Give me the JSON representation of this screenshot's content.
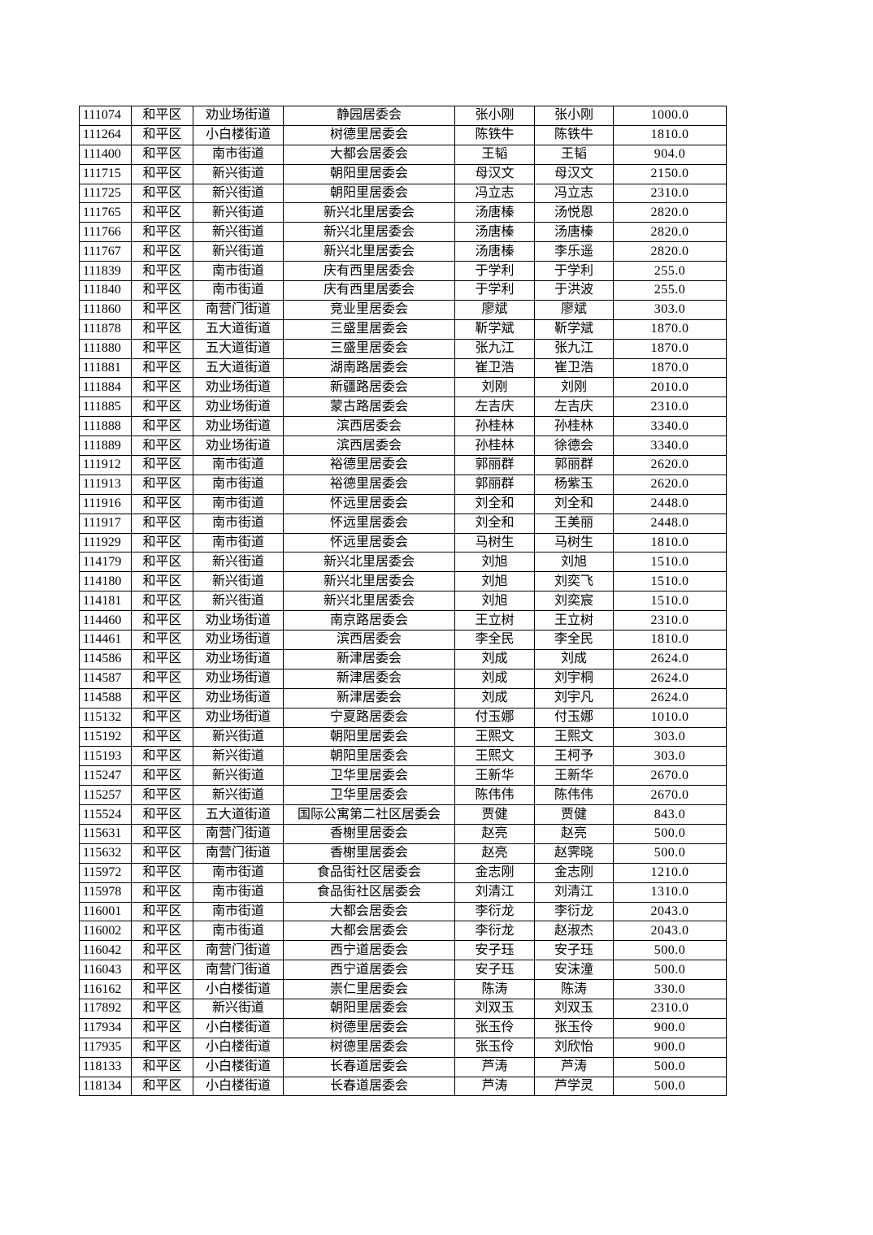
{
  "rows": [
    [
      "111074",
      "和平区",
      "劝业场街道",
      "静园居委会",
      "张小刚",
      "张小刚",
      "1000.0"
    ],
    [
      "111264",
      "和平区",
      "小白楼街道",
      "树德里居委会",
      "陈铁牛",
      "陈铁牛",
      "1810.0"
    ],
    [
      "111400",
      "和平区",
      "南市街道",
      "大都会居委会",
      "王韬",
      "王韬",
      "904.0"
    ],
    [
      "111715",
      "和平区",
      "新兴街道",
      "朝阳里居委会",
      "母汉文",
      "母汉文",
      "2150.0"
    ],
    [
      "111725",
      "和平区",
      "新兴街道",
      "朝阳里居委会",
      "冯立志",
      "冯立志",
      "2310.0"
    ],
    [
      "111765",
      "和平区",
      "新兴街道",
      "新兴北里居委会",
      "汤唐榛",
      "汤悦恩",
      "2820.0"
    ],
    [
      "111766",
      "和平区",
      "新兴街道",
      "新兴北里居委会",
      "汤唐榛",
      "汤唐榛",
      "2820.0"
    ],
    [
      "111767",
      "和平区",
      "新兴街道",
      "新兴北里居委会",
      "汤唐榛",
      "李乐遥",
      "2820.0"
    ],
    [
      "111839",
      "和平区",
      "南市街道",
      "庆有西里居委会",
      "于学利",
      "于学利",
      "255.0"
    ],
    [
      "111840",
      "和平区",
      "南市街道",
      "庆有西里居委会",
      "于学利",
      "于洪波",
      "255.0"
    ],
    [
      "111860",
      "和平区",
      "南营门街道",
      "竞业里居委会",
      "廖斌",
      "廖斌",
      "303.0"
    ],
    [
      "111878",
      "和平区",
      "五大道街道",
      "三盛里居委会",
      "靳学斌",
      "靳学斌",
      "1870.0"
    ],
    [
      "111880",
      "和平区",
      "五大道街道",
      "三盛里居委会",
      "张九江",
      "张九江",
      "1870.0"
    ],
    [
      "111881",
      "和平区",
      "五大道街道",
      "湖南路居委会",
      "崔卫浩",
      "崔卫浩",
      "1870.0"
    ],
    [
      "111884",
      "和平区",
      "劝业场街道",
      "新疆路居委会",
      "刘刚",
      "刘刚",
      "2010.0"
    ],
    [
      "111885",
      "和平区",
      "劝业场街道",
      "蒙古路居委会",
      "左吉庆",
      "左吉庆",
      "2310.0"
    ],
    [
      "111888",
      "和平区",
      "劝业场街道",
      "滨西居委会",
      "孙桂林",
      "孙桂林",
      "3340.0"
    ],
    [
      "111889",
      "和平区",
      "劝业场街道",
      "滨西居委会",
      "孙桂林",
      "徐德会",
      "3340.0"
    ],
    [
      "111912",
      "和平区",
      "南市街道",
      "裕德里居委会",
      "郭丽群",
      "郭丽群",
      "2620.0"
    ],
    [
      "111913",
      "和平区",
      "南市街道",
      "裕德里居委会",
      "郭丽群",
      "杨紫玉",
      "2620.0"
    ],
    [
      "111916",
      "和平区",
      "南市街道",
      "怀远里居委会",
      "刘全和",
      "刘全和",
      "2448.0"
    ],
    [
      "111917",
      "和平区",
      "南市街道",
      "怀远里居委会",
      "刘全和",
      "王美丽",
      "2448.0"
    ],
    [
      "111929",
      "和平区",
      "南市街道",
      "怀远里居委会",
      "马树生",
      "马树生",
      "1810.0"
    ],
    [
      "114179",
      "和平区",
      "新兴街道",
      "新兴北里居委会",
      "刘旭",
      "刘旭",
      "1510.0"
    ],
    [
      "114180",
      "和平区",
      "新兴街道",
      "新兴北里居委会",
      "刘旭",
      "刘奕飞",
      "1510.0"
    ],
    [
      "114181",
      "和平区",
      "新兴街道",
      "新兴北里居委会",
      "刘旭",
      "刘奕宸",
      "1510.0"
    ],
    [
      "114460",
      "和平区",
      "劝业场街道",
      "南京路居委会",
      "王立树",
      "王立树",
      "2310.0"
    ],
    [
      "114461",
      "和平区",
      "劝业场街道",
      "滨西居委会",
      "李全民",
      "李全民",
      "1810.0"
    ],
    [
      "114586",
      "和平区",
      "劝业场街道",
      "新津居委会",
      "刘成",
      "刘成",
      "2624.0"
    ],
    [
      "114587",
      "和平区",
      "劝业场街道",
      "新津居委会",
      "刘成",
      "刘宇桐",
      "2624.0"
    ],
    [
      "114588",
      "和平区",
      "劝业场街道",
      "新津居委会",
      "刘成",
      "刘宇凡",
      "2624.0"
    ],
    [
      "115132",
      "和平区",
      "劝业场街道",
      "宁夏路居委会",
      "付玉娜",
      "付玉娜",
      "1010.0"
    ],
    [
      "115192",
      "和平区",
      "新兴街道",
      "朝阳里居委会",
      "王熙文",
      "王熙文",
      "303.0"
    ],
    [
      "115193",
      "和平区",
      "新兴街道",
      "朝阳里居委会",
      "王熙文",
      "王柯予",
      "303.0"
    ],
    [
      "115247",
      "和平区",
      "新兴街道",
      "卫华里居委会",
      "王新华",
      "王新华",
      "2670.0"
    ],
    [
      "115257",
      "和平区",
      "新兴街道",
      "卫华里居委会",
      "陈伟伟",
      "陈伟伟",
      "2670.0"
    ],
    [
      "115524",
      "和平区",
      "五大道街道",
      "国际公寓第二社区居委会",
      "贾健",
      "贾健",
      "843.0"
    ],
    [
      "115631",
      "和平区",
      "南营门街道",
      "香榭里居委会",
      "赵亮",
      "赵亮",
      "500.0"
    ],
    [
      "115632",
      "和平区",
      "南营门街道",
      "香榭里居委会",
      "赵亮",
      "赵霁晓",
      "500.0"
    ],
    [
      "115972",
      "和平区",
      "南市街道",
      "食品街社区居委会",
      "金志刚",
      "金志刚",
      "1210.0"
    ],
    [
      "115978",
      "和平区",
      "南市街道",
      "食品街社区居委会",
      "刘清江",
      "刘清江",
      "1310.0"
    ],
    [
      "116001",
      "和平区",
      "南市街道",
      "大都会居委会",
      "李衍龙",
      "李衍龙",
      "2043.0"
    ],
    [
      "116002",
      "和平区",
      "南市街道",
      "大都会居委会",
      "李衍龙",
      "赵淑杰",
      "2043.0"
    ],
    [
      "116042",
      "和平区",
      "南营门街道",
      "西宁道居委会",
      "安子珏",
      "安子珏",
      "500.0"
    ],
    [
      "116043",
      "和平区",
      "南营门街道",
      "西宁道居委会",
      "安子珏",
      "安沫潼",
      "500.0"
    ],
    [
      "116162",
      "和平区",
      "小白楼街道",
      "崇仁里居委会",
      "陈涛",
      "陈涛",
      "330.0"
    ],
    [
      "117892",
      "和平区",
      "新兴街道",
      "朝阳里居委会",
      "刘双玉",
      "刘双玉",
      "2310.0"
    ],
    [
      "117934",
      "和平区",
      "小白楼街道",
      "树德里居委会",
      "张玉伶",
      "张玉伶",
      "900.0"
    ],
    [
      "117935",
      "和平区",
      "小白楼街道",
      "树德里居委会",
      "张玉伶",
      "刘欣怡",
      "900.0"
    ],
    [
      "118133",
      "和平区",
      "小白楼街道",
      "长春道居委会",
      "芦涛",
      "芦涛",
      "500.0"
    ],
    [
      "118134",
      "和平区",
      "小白楼街道",
      "长春道居委会",
      "芦涛",
      "芦学灵",
      "500.0"
    ]
  ]
}
